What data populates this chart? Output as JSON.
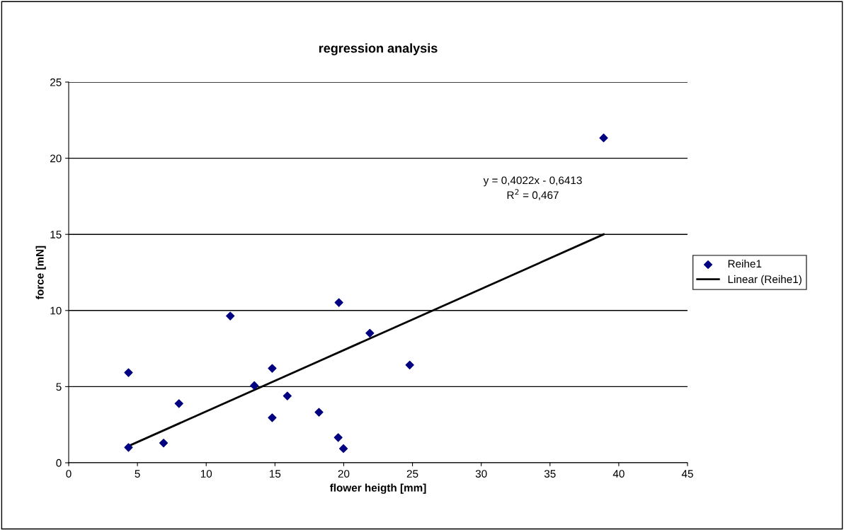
{
  "chart_data": {
    "type": "scatter",
    "title": "regression analysis",
    "xlabel": "flower heigth [mm]",
    "ylabel": "force [mN]",
    "series": [
      {
        "name": "Reihe1",
        "color": "#000080",
        "marker": "diamond",
        "x": [
          4.35,
          4.35,
          6.9,
          8.02,
          11.75,
          13.5,
          14.8,
          14.8,
          15.9,
          18.2,
          19.6,
          19.65,
          19.98,
          21.9,
          24.8,
          38.9
        ],
        "values": [
          5.92,
          1.01,
          1.3,
          3.89,
          9.64,
          5.07,
          6.2,
          2.96,
          4.39,
          3.32,
          1.66,
          10.52,
          0.93,
          8.51,
          6.42,
          21.33
        ]
      },
      {
        "name": "Linear (Reihe1)",
        "type": "line",
        "color": "#000000",
        "marker": "none",
        "x": [
          4.35,
          38.9
        ],
        "values": [
          1.1,
          15.0
        ]
      }
    ],
    "annotations": [
      "y = 0,4022x - 0,6413\nR$^{2}$ = 0,467"
    ],
    "xlim": [
      0,
      45
    ],
    "xticks": [
      0,
      5,
      10,
      15,
      20,
      25,
      30,
      35,
      40,
      45
    ],
    "ylim": [
      0,
      25
    ],
    "yticks": [
      0,
      5,
      10,
      15,
      20,
      25
    ],
    "grid": "y",
    "legend": "right"
  }
}
